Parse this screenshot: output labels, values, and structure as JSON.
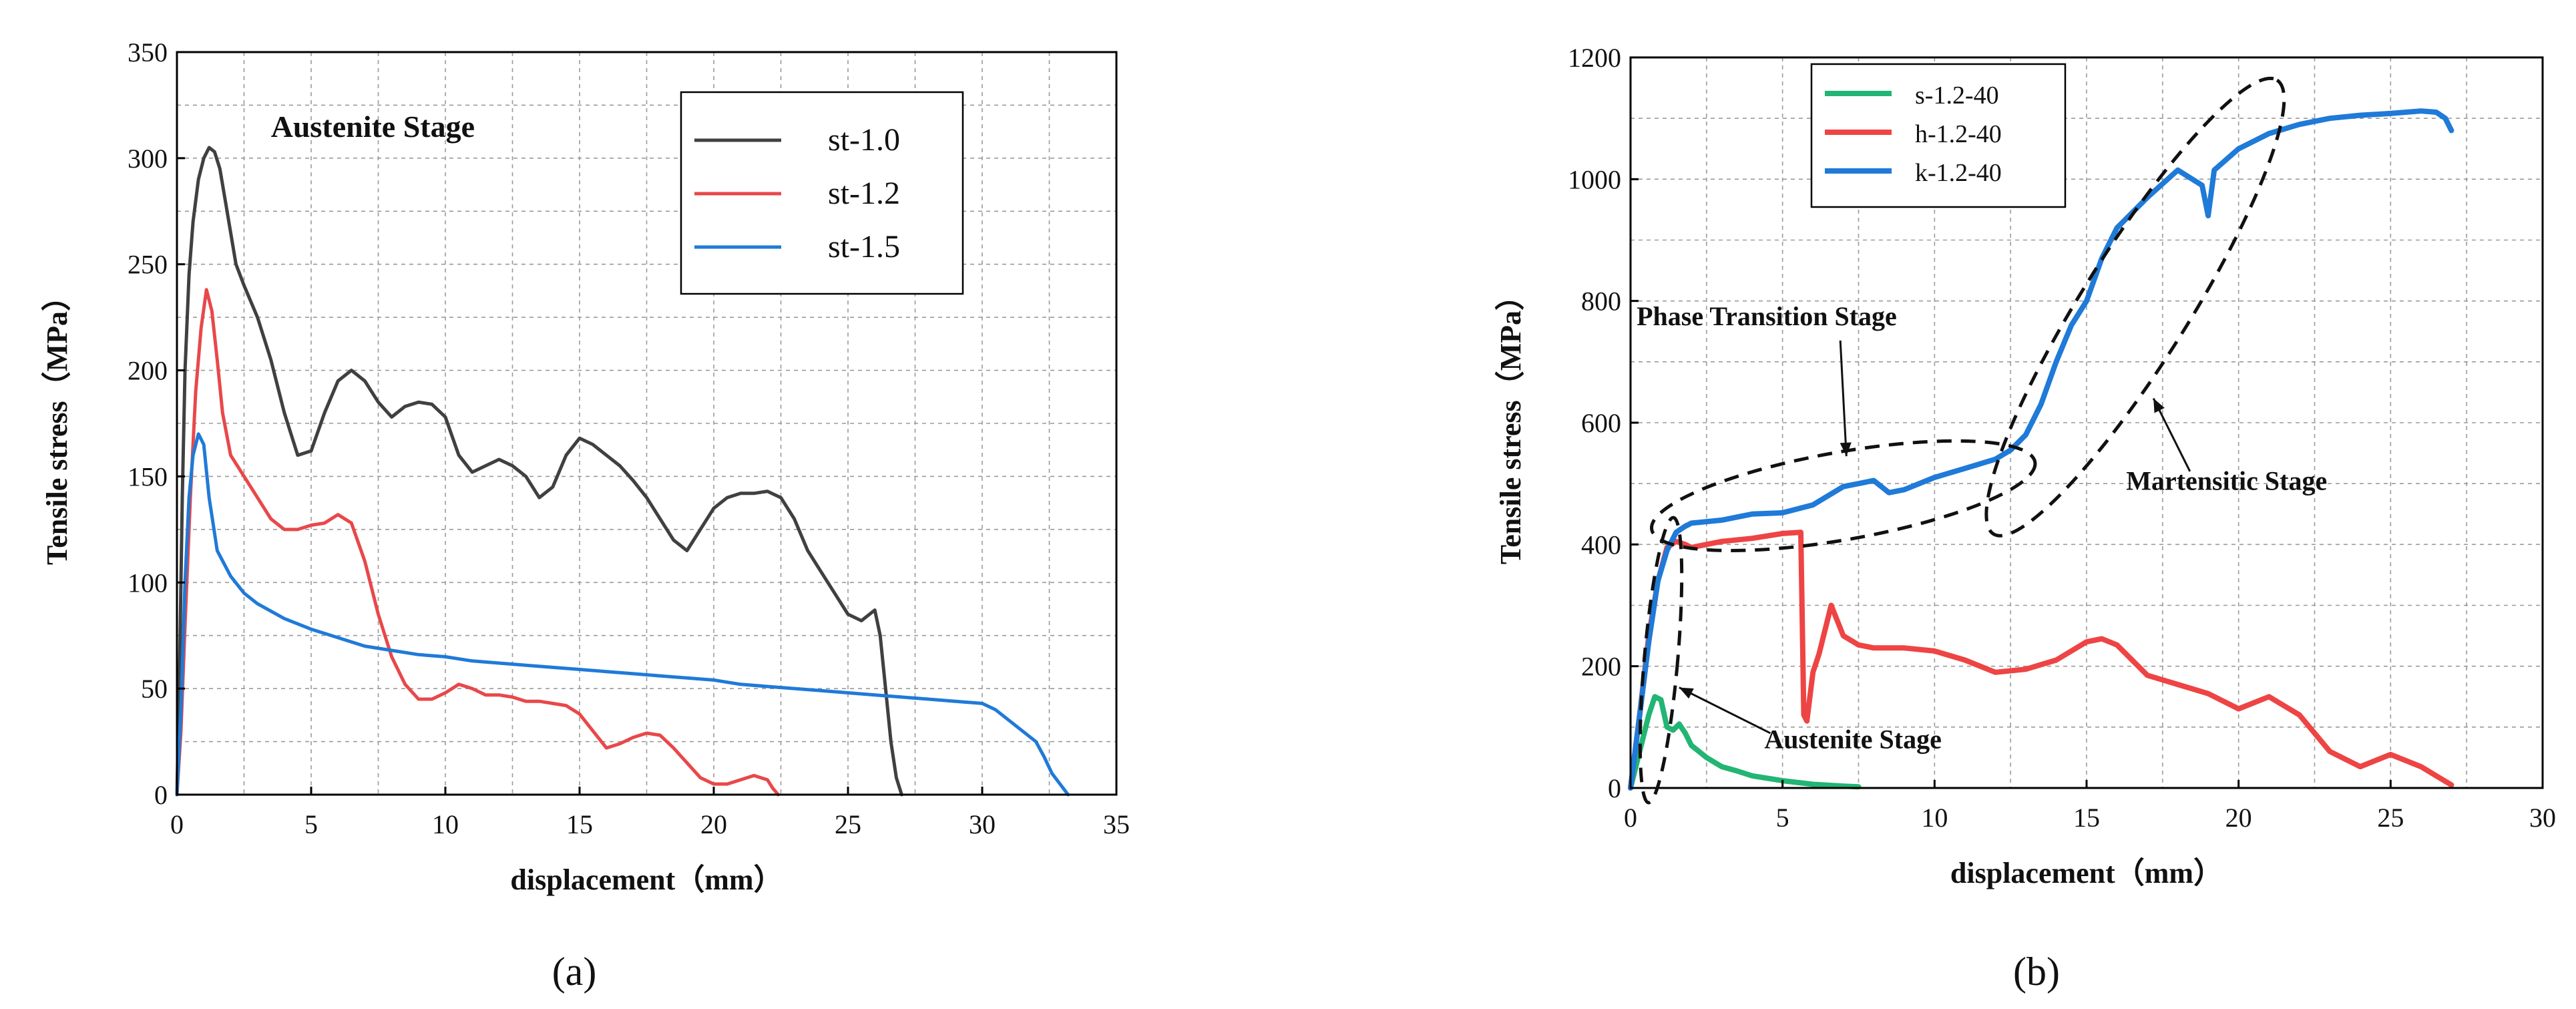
{
  "chart_data": [
    {
      "panel": "(a)",
      "type": "line",
      "xlabel": "displacement（mm）",
      "ylabel": "Tensile stress（MPa）",
      "xlim": [
        0,
        35
      ],
      "ylim": [
        0,
        350
      ],
      "xticks": [
        0,
        5,
        10,
        15,
        20,
        25,
        30,
        35
      ],
      "yticks": [
        0,
        50,
        100,
        150,
        200,
        250,
        300,
        350
      ],
      "grid": true,
      "legend_position": "top-right",
      "annotations": [
        {
          "text": "Austenite Stage",
          "x": 3.5,
          "y": 310
        }
      ],
      "series": [
        {
          "name": "st-1.0",
          "color": "#404040",
          "x": [
            0,
            0.1,
            0.2,
            0.3,
            0.45,
            0.6,
            0.8,
            1.0,
            1.2,
            1.4,
            1.6,
            1.8,
            2.0,
            2.2,
            2.5,
            3.0,
            3.5,
            4.0,
            4.5,
            5.0,
            5.5,
            6.0,
            6.5,
            7.0,
            7.5,
            8.0,
            8.5,
            9.0,
            9.5,
            10.0,
            10.5,
            11.0,
            11.5,
            12.0,
            12.5,
            13.0,
            13.5,
            14.0,
            14.5,
            15.0,
            15.5,
            16.0,
            16.5,
            17.0,
            17.5,
            18.0,
            18.5,
            19.0,
            19.5,
            20.0,
            20.5,
            21.0,
            21.5,
            22.0,
            22.5,
            23.0,
            23.5,
            24.0,
            24.5,
            25.0,
            25.5,
            26.0,
            26.2,
            26.4,
            26.6,
            26.8,
            27.0
          ],
          "y": [
            0,
            60,
            140,
            200,
            245,
            270,
            290,
            300,
            305,
            303,
            295,
            280,
            265,
            250,
            240,
            225,
            205,
            180,
            160,
            162,
            180,
            195,
            200,
            195,
            185,
            178,
            183,
            185,
            184,
            178,
            160,
            152,
            155,
            158,
            155,
            150,
            140,
            145,
            160,
            168,
            165,
            160,
            155,
            148,
            140,
            130,
            120,
            115,
            125,
            135,
            140,
            142,
            142,
            143,
            140,
            130,
            115,
            105,
            95,
            85,
            82,
            87,
            75,
            50,
            25,
            8,
            0
          ]
        },
        {
          "name": "st-1.2",
          "color": "#e8484a",
          "x": [
            0,
            0.15,
            0.3,
            0.5,
            0.7,
            0.9,
            1.1,
            1.3,
            1.5,
            1.7,
            2.0,
            2.5,
            3.0,
            3.5,
            4.0,
            4.5,
            5.0,
            5.5,
            6.0,
            6.5,
            7.0,
            7.5,
            8.0,
            8.5,
            9.0,
            9.5,
            10.0,
            10.5,
            11.0,
            11.5,
            12.0,
            12.5,
            13.0,
            13.5,
            14.0,
            14.5,
            15.0,
            15.5,
            16.0,
            16.5,
            17.0,
            17.5,
            18.0,
            18.5,
            19.0,
            19.5,
            20.0,
            20.5,
            21.0,
            21.5,
            22.0,
            22.2,
            22.4
          ],
          "y": [
            0,
            30,
            80,
            140,
            190,
            220,
            238,
            228,
            205,
            180,
            160,
            150,
            140,
            130,
            125,
            125,
            127,
            128,
            132,
            128,
            110,
            85,
            65,
            52,
            45,
            45,
            48,
            52,
            50,
            47,
            47,
            46,
            44,
            44,
            43,
            42,
            38,
            30,
            22,
            24,
            27,
            29,
            28,
            22,
            15,
            8,
            5,
            5,
            7,
            9,
            7,
            3,
            0
          ]
        },
        {
          "name": "st-1.5",
          "color": "#1f7ad8",
          "x": [
            0,
            0.15,
            0.3,
            0.45,
            0.6,
            0.8,
            1.0,
            1.2,
            1.5,
            2.0,
            2.5,
            3.0,
            4.0,
            5.0,
            6.0,
            7.0,
            8.0,
            9.0,
            10.0,
            11.0,
            12.0,
            13.0,
            14.0,
            15.0,
            16.0,
            17.0,
            18.0,
            19.0,
            20.0,
            21.0,
            22.0,
            23.0,
            24.0,
            25.0,
            26.0,
            27.0,
            28.0,
            29.0,
            30.0,
            30.5,
            31.0,
            31.5,
            32.0,
            32.3,
            32.6,
            32.9,
            33.2
          ],
          "y": [
            0,
            40,
            100,
            140,
            160,
            170,
            165,
            140,
            115,
            103,
            95,
            90,
            83,
            78,
            74,
            70,
            68,
            66,
            65,
            63,
            62,
            61,
            60,
            59,
            58,
            57,
            56,
            55,
            54,
            52,
            51,
            50,
            49,
            48,
            47,
            46,
            45,
            44,
            43,
            40,
            35,
            30,
            25,
            18,
            10,
            5,
            0
          ]
        }
      ]
    },
    {
      "panel": "(b)",
      "type": "line",
      "xlabel": "displacement（mm）",
      "ylabel": "Tensile stress（MPa）",
      "xlim": [
        0,
        30
      ],
      "ylim": [
        0,
        1200
      ],
      "xticks": [
        0,
        5,
        10,
        15,
        20,
        25,
        30
      ],
      "yticks": [
        0,
        200,
        400,
        600,
        800,
        1000,
        1200
      ],
      "grid": true,
      "legend_position": "top-left",
      "annotations": [
        {
          "text": "Phase Transition Stage",
          "x": 0.2,
          "y": 760
        },
        {
          "text": "Martensitic Stage",
          "x": 16.3,
          "y": 490
        },
        {
          "text": "Austenite Stage",
          "x": 4.4,
          "y": 65
        }
      ],
      "series": [
        {
          "name": "s-1.2-40",
          "color": "#22b573",
          "x": [
            0,
            0.2,
            0.4,
            0.6,
            0.8,
            1.0,
            1.2,
            1.4,
            1.6,
            1.8,
            2.0,
            2.5,
            3.0,
            3.5,
            4.0,
            5.0,
            6.0,
            7.0,
            7.5
          ],
          "y": [
            0,
            40,
            80,
            120,
            150,
            145,
            100,
            95,
            105,
            90,
            70,
            50,
            35,
            28,
            20,
            12,
            6,
            3,
            2
          ]
        },
        {
          "name": "h-1.2-40",
          "color": "#ee4444",
          "x": [
            0,
            0.3,
            0.6,
            0.9,
            1.2,
            1.5,
            1.8,
            2.0,
            2.5,
            3.0,
            4.0,
            5.0,
            5.6,
            5.7,
            5.8,
            6.0,
            6.2,
            6.4,
            6.6,
            6.8,
            7.0,
            7.5,
            8.0,
            9.0,
            10.0,
            11.0,
            12.0,
            13.0,
            14.0,
            15.0,
            15.5,
            16.0,
            16.5,
            17.0,
            18.0,
            19.0,
            20.0,
            21.0,
            22.0,
            23.0,
            24.0,
            25.0,
            26.0,
            26.5,
            27.0
          ],
          "y": [
            0,
            120,
            250,
            340,
            395,
            405,
            400,
            395,
            400,
            405,
            410,
            418,
            420,
            120,
            110,
            190,
            220,
            260,
            300,
            275,
            250,
            235,
            230,
            230,
            225,
            210,
            190,
            195,
            210,
            240,
            245,
            235,
            210,
            185,
            170,
            155,
            130,
            150,
            120,
            60,
            35,
            55,
            35,
            20,
            5
          ]
        },
        {
          "name": "k-1.2-40",
          "color": "#1f7ad8",
          "x": [
            0,
            0.3,
            0.6,
            0.9,
            1.2,
            1.5,
            1.8,
            2.0,
            3.0,
            4.0,
            5.0,
            6.0,
            7.0,
            7.5,
            8.0,
            8.5,
            9.0,
            10.0,
            11.0,
            12.0,
            12.5,
            13.0,
            13.5,
            14.0,
            14.5,
            15.0,
            15.5,
            16.0,
            17.0,
            18.0,
            18.8,
            19.0,
            19.2,
            20.0,
            21.0,
            22.0,
            23.0,
            24.0,
            25.0,
            26.0,
            26.5,
            26.8,
            27.0
          ],
          "y": [
            0,
            120,
            240,
            340,
            390,
            420,
            430,
            435,
            440,
            450,
            452,
            465,
            495,
            500,
            505,
            485,
            490,
            510,
            525,
            540,
            555,
            580,
            630,
            700,
            760,
            800,
            870,
            920,
            970,
            1015,
            990,
            940,
            1015,
            1050,
            1075,
            1090,
            1100,
            1105,
            1108,
            1112,
            1110,
            1100,
            1080
          ]
        }
      ]
    }
  ]
}
